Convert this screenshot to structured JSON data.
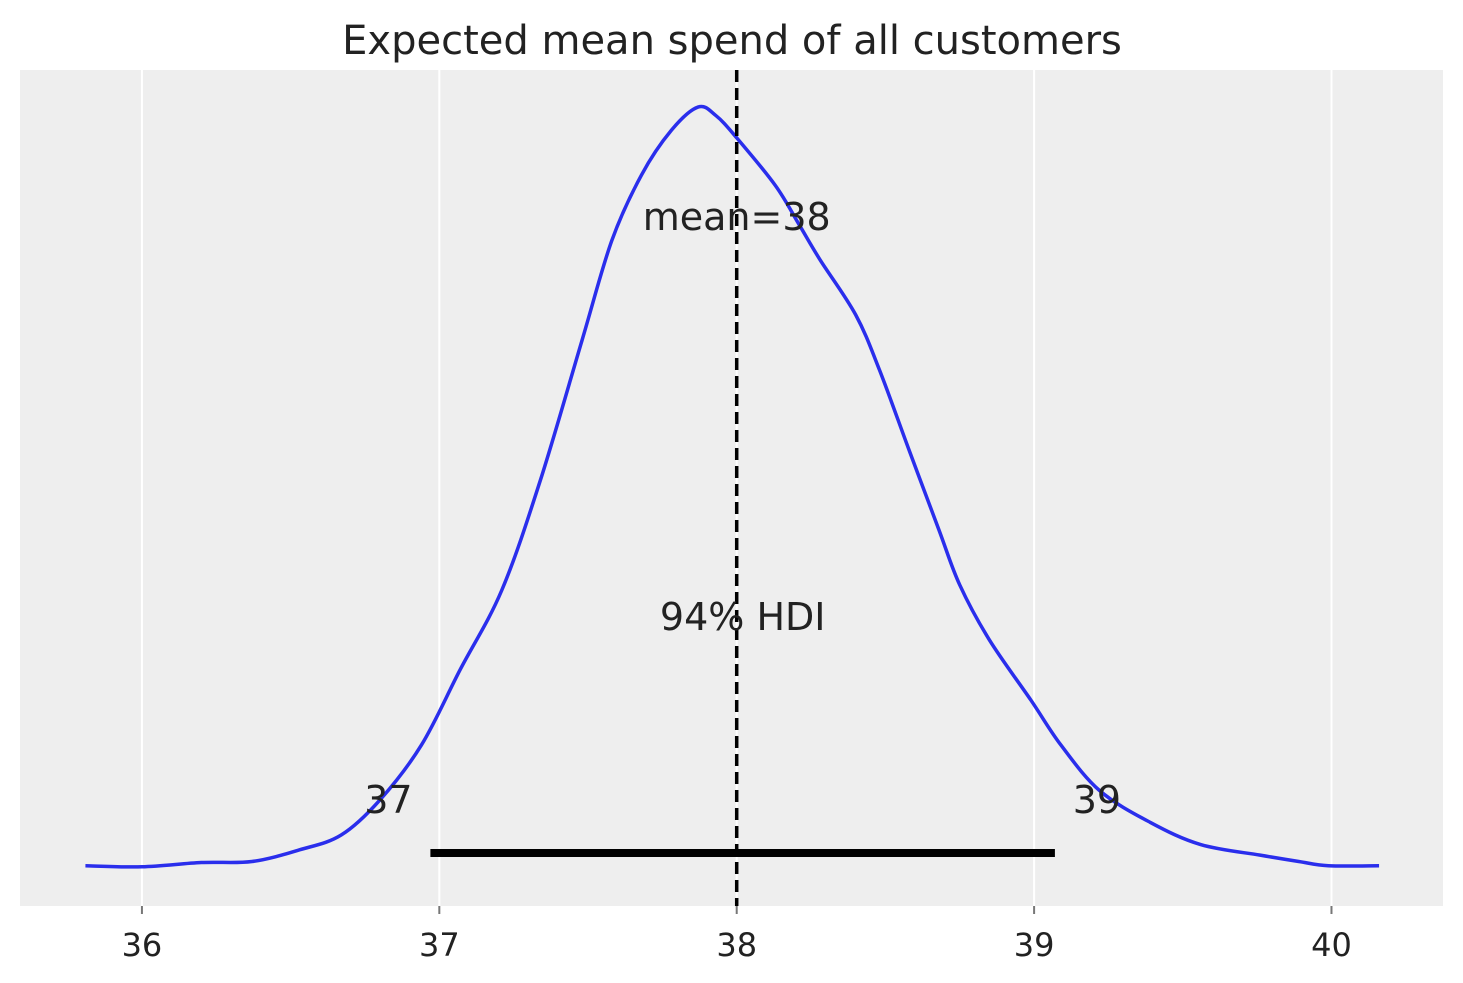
{
  "chart_data": {
    "type": "line",
    "title": "Expected mean spend of all customers",
    "xlabel": "",
    "ylabel": "",
    "xlim": [
      35.59,
      40.375
    ],
    "ylim": [
      -0.034,
      0.755
    ],
    "y_axis_visible": false,
    "grid": "vertical",
    "x_ticks": [
      36,
      37,
      38,
      39,
      40
    ],
    "x_tick_labels": [
      "36",
      "37",
      "38",
      "39",
      "40"
    ],
    "colors": {
      "background": "#eeeeee",
      "density": "#2a2eec",
      "grid": "#ffffff",
      "hdi": "#000000",
      "text": "#222222"
    },
    "series": [
      {
        "x": [
          35.81,
          36.0,
          36.2,
          36.37,
          36.53,
          36.67,
          36.8,
          36.94,
          37.07,
          37.21,
          37.34,
          37.48,
          37.58,
          37.68,
          37.78,
          37.87,
          37.93,
          38.0,
          38.13,
          38.21,
          38.28,
          38.4,
          38.48,
          38.58,
          38.68,
          38.75,
          38.85,
          38.99,
          39.09,
          39.22,
          39.39,
          39.56,
          39.76,
          39.89,
          39.99,
          40.16
        ],
        "y": [
          0.004,
          0.003,
          0.007,
          0.008,
          0.019,
          0.033,
          0.066,
          0.118,
          0.189,
          0.264,
          0.368,
          0.5,
          0.594,
          0.656,
          0.698,
          0.72,
          0.712,
          0.691,
          0.646,
          0.609,
          0.576,
          0.524,
          0.472,
          0.396,
          0.321,
          0.269,
          0.217,
          0.16,
          0.118,
          0.075,
          0.045,
          0.024,
          0.014,
          0.008,
          0.004,
          0.004
        ]
      }
    ],
    "mean": {
      "value": 38,
      "label": "mean=38"
    },
    "hdi": {
      "low": 36.97,
      "high": 39.07,
      "label": "94% HDI",
      "low_label": "37",
      "high_label": "39",
      "y": 0.016
    }
  }
}
